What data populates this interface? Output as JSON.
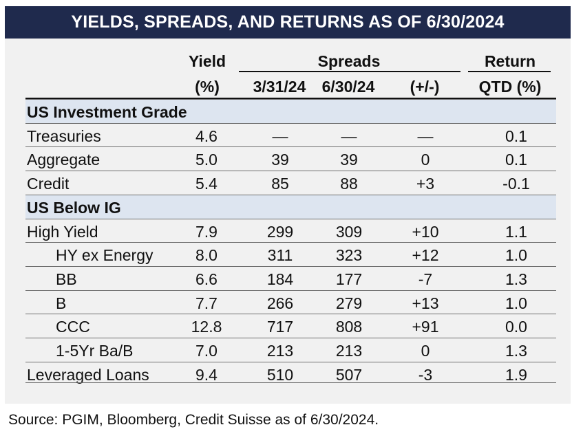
{
  "title": "YIELDS, SPREADS, AND RETURNS AS OF 6/30/2024",
  "headers": {
    "yield_top": "Yield",
    "yield_bottom": "(%)",
    "spreads": "Spreads",
    "spread_col1": "3/31/24",
    "spread_col2": "6/30/24",
    "spread_change": "(+/-)",
    "return_top": "Return",
    "return_bottom": "QTD (%)"
  },
  "rows": [
    {
      "label": "US Investment Grade",
      "section": true
    },
    {
      "label": "Treasuries",
      "yield": "4.6",
      "s1": "—",
      "s2": "—",
      "chg": "—",
      "ret": "0.1"
    },
    {
      "label": "Aggregate",
      "yield": "5.0",
      "s1": "39",
      "s2": "39",
      "chg": "0",
      "ret": "0.1"
    },
    {
      "label": "Credit",
      "yield": "5.4",
      "s1": "85",
      "s2": "88",
      "chg": "+3",
      "ret": "-0.1"
    },
    {
      "label": "US Below IG",
      "section": true
    },
    {
      "label": "High Yield",
      "yield": "7.9",
      "s1": "299",
      "s2": "309",
      "chg": "+10",
      "ret": "1.1"
    },
    {
      "label": "HY ex Energy",
      "indent": true,
      "yield": "8.0",
      "s1": "311",
      "s2": "323",
      "chg": "+12",
      "ret": "1.0"
    },
    {
      "label": "BB",
      "indent": true,
      "yield": "6.6",
      "s1": "184",
      "s2": "177",
      "chg": "-7",
      "ret": "1.3"
    },
    {
      "label": "B",
      "indent": true,
      "yield": "7.7",
      "s1": "266",
      "s2": "279",
      "chg": "+13",
      "ret": "1.0"
    },
    {
      "label": "CCC",
      "indent": true,
      "yield": "12.8",
      "s1": "717",
      "s2": "808",
      "chg": "+91",
      "ret": "0.0"
    },
    {
      "label": "1-5Yr Ba/B",
      "indent": true,
      "yield": "7.0",
      "s1": "213",
      "s2": "213",
      "chg": "0",
      "ret": "1.3"
    },
    {
      "label": "Leveraged Loans",
      "yield": "9.4",
      "s1": "510",
      "s2": "507",
      "chg": "-3",
      "ret": "1.9"
    }
  ],
  "source": "Source: PGIM, Bloomberg, Credit Suisse as of 6/30/2024."
}
